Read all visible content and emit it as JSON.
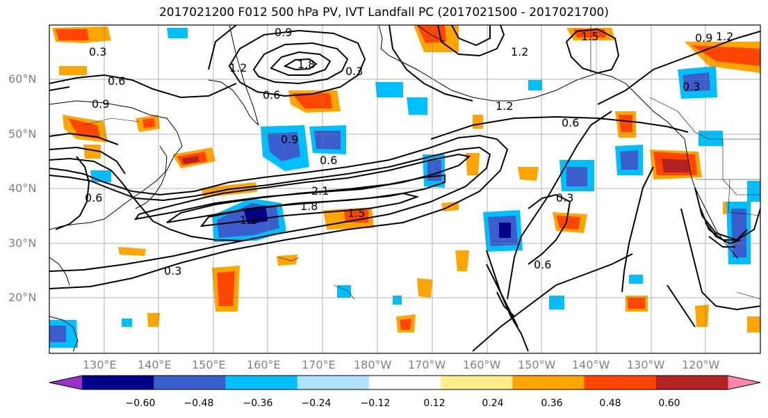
{
  "title": "2017021200 F012 500 hPa PV, IVT Landfall PC (2017021500 - 2017021700)",
  "lat_labels": [
    "60°N",
    "50°N",
    "40°N",
    "30°N",
    "20°N"
  ],
  "lon_labels": [
    "130°E",
    "140°E",
    "150°E",
    "160°E",
    "170°E",
    "180°W",
    "170°W",
    "160°W",
    "150°W",
    "140°W",
    "130°W",
    "120°W"
  ],
  "colorbar": {
    "ticks": [
      "−0.60",
      "−0.48",
      "−0.36",
      "−0.24",
      "−0.12",
      "0.12",
      "0.24",
      "0.36",
      "0.48",
      "0.60"
    ],
    "colors": [
      "#9932cc",
      "#00008b",
      "#3a5fcd",
      "#00bfff",
      "#b0e2ff",
      "#ffffff",
      "#ffec8b",
      "#ffa500",
      "#ff4500",
      "#b22222",
      "#ff88aa"
    ]
  },
  "contour_labels": [
    "0.3",
    "0.6",
    "0.9",
    "1.2",
    "1.5",
    "1.8",
    "2.1",
    "0.9",
    "0.6",
    "0.3",
    "0.6",
    "0.9",
    "1.2",
    "1.5",
    "1.2",
    "0.6",
    "0.3",
    "0.9",
    "0.6",
    "0.3",
    "0.3",
    "0.6",
    "1.2",
    "1.8",
    "1.2"
  ]
}
